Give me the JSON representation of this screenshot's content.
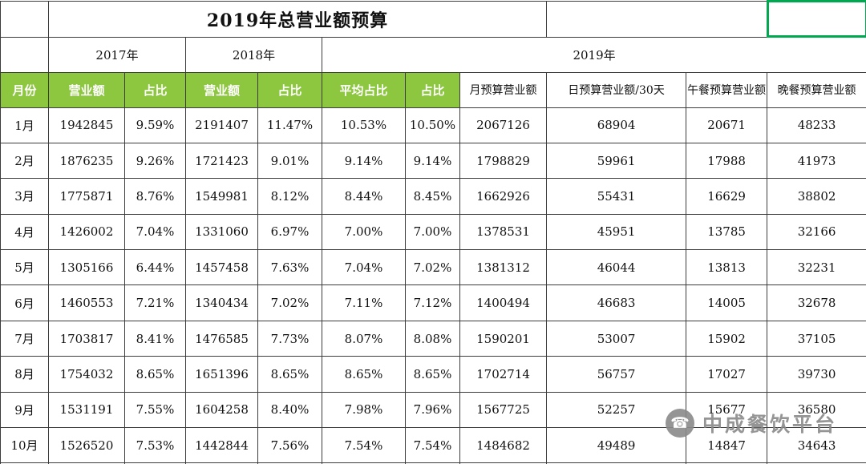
{
  "title": "2019年总营业额预算",
  "years": {
    "y2017": "2017年",
    "y2018": "2018年",
    "y2019": "2019年"
  },
  "columns": [
    "月份",
    "营业额",
    "占比",
    "营业额",
    "占比",
    "平均占比",
    "占比",
    "月预算营业额",
    "日预算营业额/30天",
    "午餐预算营业额",
    "晚餐预算营业额"
  ],
  "rows": [
    [
      "1月",
      "1942845",
      "9.59%",
      "2191407",
      "11.47%",
      "10.53%",
      "10.50%",
      "2067126",
      "68904",
      "20671",
      "48233"
    ],
    [
      "2月",
      "1876235",
      "9.26%",
      "1721423",
      "9.01%",
      "9.14%",
      "9.14%",
      "1798829",
      "59961",
      "17988",
      "41973"
    ],
    [
      "3月",
      "1775871",
      "8.76%",
      "1549981",
      "8.12%",
      "8.44%",
      "8.45%",
      "1662926",
      "55431",
      "16629",
      "38802"
    ],
    [
      "4月",
      "1426002",
      "7.04%",
      "1331060",
      "6.97%",
      "7.00%",
      "7.00%",
      "1378531",
      "45951",
      "13785",
      "32166"
    ],
    [
      "5月",
      "1305166",
      "6.44%",
      "1457458",
      "7.63%",
      "7.04%",
      "7.02%",
      "1381312",
      "46044",
      "13813",
      "32231"
    ],
    [
      "6月",
      "1460553",
      "7.21%",
      "1340434",
      "7.02%",
      "7.11%",
      "7.12%",
      "1400494",
      "46683",
      "14005",
      "32678"
    ],
    [
      "7月",
      "1703817",
      "8.41%",
      "1476585",
      "7.73%",
      "8.07%",
      "8.08%",
      "1590201",
      "53007",
      "15902",
      "37105"
    ],
    [
      "8月",
      "1754032",
      "8.65%",
      "1651396",
      "8.65%",
      "8.65%",
      "8.65%",
      "1702714",
      "56757",
      "17027",
      "39730"
    ],
    [
      "9月",
      "1531191",
      "7.55%",
      "1604258",
      "8.40%",
      "7.98%",
      "7.96%",
      "1567725",
      "52257",
      "15677",
      "36580"
    ],
    [
      "10月",
      "1526520",
      "7.53%",
      "1442844",
      "7.56%",
      "7.54%",
      "7.54%",
      "1484682",
      "49489",
      "14847",
      "34643"
    ]
  ],
  "watermark": {
    "text": "中成餐饮平台",
    "logo_glyph": "☎"
  },
  "colors": {
    "header_green": "#8dc63f",
    "selection_green": "#00a94f",
    "border_dark": "#3c3c3c",
    "watermark_gray": "#8a8a8a"
  }
}
